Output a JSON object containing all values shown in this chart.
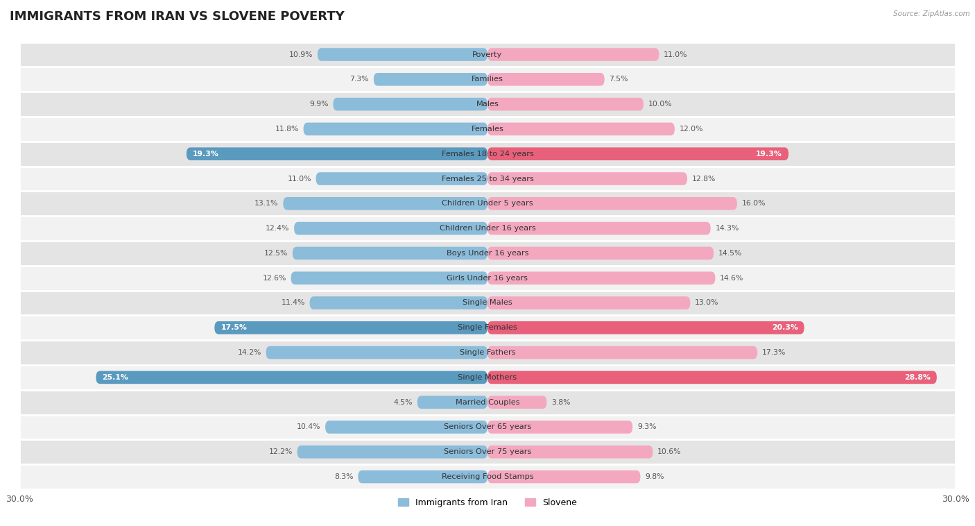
{
  "title": "IMMIGRANTS FROM IRAN VS SLOVENE POVERTY",
  "source": "Source: ZipAtlas.com",
  "categories": [
    "Poverty",
    "Families",
    "Males",
    "Females",
    "Females 18 to 24 years",
    "Females 25 to 34 years",
    "Children Under 5 years",
    "Children Under 16 years",
    "Boys Under 16 years",
    "Girls Under 16 years",
    "Single Males",
    "Single Females",
    "Single Fathers",
    "Single Mothers",
    "Married Couples",
    "Seniors Over 65 years",
    "Seniors Over 75 years",
    "Receiving Food Stamps"
  ],
  "iran_values": [
    10.9,
    7.3,
    9.9,
    11.8,
    19.3,
    11.0,
    13.1,
    12.4,
    12.5,
    12.6,
    11.4,
    17.5,
    14.2,
    25.1,
    4.5,
    10.4,
    12.2,
    8.3
  ],
  "slovene_values": [
    11.0,
    7.5,
    10.0,
    12.0,
    19.3,
    12.8,
    16.0,
    14.3,
    14.5,
    14.6,
    13.0,
    20.3,
    17.3,
    28.8,
    3.8,
    9.3,
    10.6,
    9.8
  ],
  "iran_color": "#8bbcda",
  "slovene_color": "#f4a8c0",
  "iran_highlight_color": "#5a9abf",
  "slovene_highlight_color": "#e8607a",
  "highlight_rows": [
    4,
    11,
    13
  ],
  "axis_max": 30.0,
  "bar_height": 0.52,
  "row_bg_light": "#f2f2f2",
  "row_bg_dark": "#e4e4e4",
  "legend_iran": "Immigrants from Iran",
  "legend_slovene": "Slovene",
  "title_fontsize": 13,
  "label_fontsize": 8.2,
  "value_fontsize": 7.8
}
